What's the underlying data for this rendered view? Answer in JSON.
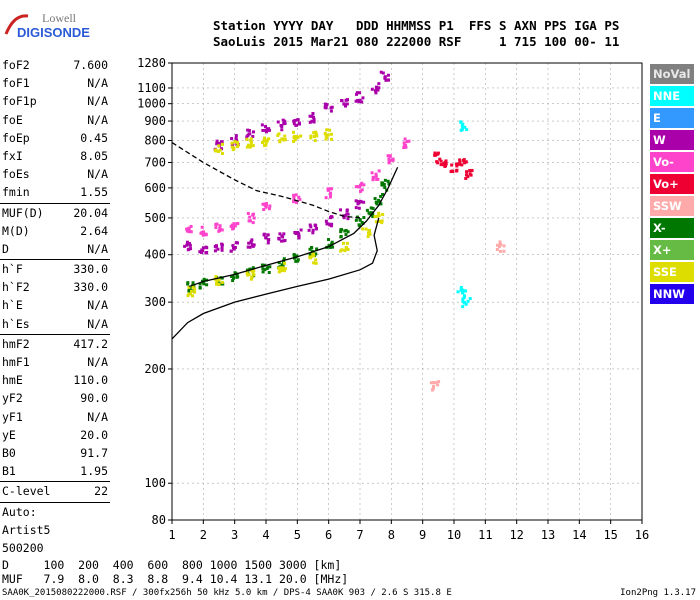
{
  "logo": {
    "line1": "Lowell",
    "line2": "DIGISONDE"
  },
  "header": {
    "row1": "Station YYYY DAY   DDD HHMMSS P1  FFS S AXN PPS IGA PS",
    "row2": "SaoLuis 2015 Mar21 080 222000 RSF     1 715 100 00- 11"
  },
  "params": [
    {
      "name": "foF2",
      "value": "7.600"
    },
    {
      "name": "foF1",
      "value": "N/A"
    },
    {
      "name": "foF1p",
      "value": "N/A"
    },
    {
      "name": "foE",
      "value": "N/A"
    },
    {
      "name": "foEp",
      "value": "0.45"
    },
    {
      "name": "fxI",
      "value": "8.05"
    },
    {
      "name": "foEs",
      "value": "N/A"
    },
    {
      "name": "fmin",
      "value": "1.55",
      "sep": true
    },
    {
      "name": "MUF(D)",
      "value": "20.04"
    },
    {
      "name": "M(D)",
      "value": "2.64"
    },
    {
      "name": "D",
      "value": "N/A",
      "sep": true
    },
    {
      "name": "h`F",
      "value": "330.0"
    },
    {
      "name": "h`F2",
      "value": "330.0"
    },
    {
      "name": "h`E",
      "value": "N/A"
    },
    {
      "name": "h`Es",
      "value": "N/A",
      "sep": true
    },
    {
      "name": "hmF2",
      "value": "417.2"
    },
    {
      "name": "hmF1",
      "value": "N/A"
    },
    {
      "name": "hmE",
      "value": "110.0"
    },
    {
      "name": "yF2",
      "value": "90.0"
    },
    {
      "name": "yF1",
      "value": "N/A"
    },
    {
      "name": "yE",
      "value": "20.0"
    },
    {
      "name": "B0",
      "value": "91.7"
    },
    {
      "name": "B1",
      "value": "1.95",
      "sep": true
    },
    {
      "name": "C-level",
      "value": "22",
      "sep": true
    },
    {
      "name": "Auto:",
      "value": ""
    },
    {
      "name": "Artist5",
      "value": ""
    },
    {
      "name": "500200",
      "value": ""
    }
  ],
  "legend": [
    {
      "label": "NoVal",
      "bg": "#808080",
      "fg": "#e8e8e8"
    },
    {
      "label": "NNE",
      "bg": "#00ffff",
      "fg": "#ffffff"
    },
    {
      "label": "E",
      "bg": "#3399ff",
      "fg": "#ffffff"
    },
    {
      "label": "W",
      "bg": "#aa00aa",
      "fg": "#ffffff"
    },
    {
      "label": "Vo-",
      "bg": "#ff44cc",
      "fg": "#ffffff"
    },
    {
      "label": "Vo+",
      "bg": "#ee0033",
      "fg": "#ffffff"
    },
    {
      "label": "SSW",
      "bg": "#ffaaaa",
      "fg": "#ffffff"
    },
    {
      "label": "X-",
      "bg": "#007700",
      "fg": "#ffffff"
    },
    {
      "label": "X+",
      "bg": "#66bb44",
      "fg": "#ffffff"
    },
    {
      "label": "SSE",
      "bg": "#dddd00",
      "fg": "#ffffff"
    },
    {
      "label": "NNW",
      "bg": "#2200ee",
      "fg": "#ffffff"
    }
  ],
  "footer": {
    "d_row": "D     100  200  400  600  800 1000 1500 3000 [km]",
    "muf_row": "MUF   7.9  8.0  8.3  8.8  9.4 10.4 13.1 20.0 [MHz]",
    "source": "SAA0K_2015080222000.RSF / 300fx256h 50 kHz 5.0 km / DPS-4 SAA0K 903 / 2.6 S 315.8 E",
    "version": "Ion2Png 1.3.17"
  },
  "chart_data": {
    "type": "scatter",
    "title": "",
    "xlabel": "",
    "ylabel": "",
    "xlim": [
      1,
      16
    ],
    "ylim": [
      80,
      1280
    ],
    "y_scale": "log",
    "x_ticks": [
      1,
      2,
      3,
      4,
      5,
      6,
      7,
      8,
      9,
      10,
      11,
      12,
      13,
      14,
      15,
      16
    ],
    "y_ticks": [
      80,
      100,
      200,
      300,
      400,
      500,
      600,
      700,
      800,
      900,
      1000,
      1100,
      1280
    ],
    "grid": "dashed",
    "curves": [
      {
        "name": "foF2 true-height profile",
        "style": "solid",
        "x": [
          1.0,
          1.5,
          2.0,
          3.0,
          4.0,
          5.0,
          6.0,
          7.0,
          7.4,
          7.55,
          7.45,
          7.6
        ],
        "y": [
          240,
          265,
          280,
          300,
          315,
          330,
          345,
          365,
          380,
          410,
          450,
          500
        ]
      },
      {
        "name": "trace model",
        "style": "solid",
        "x": [
          1.55,
          2.0,
          3.0,
          4.0,
          5.0,
          6.0,
          6.8,
          7.2,
          7.6,
          7.9,
          8.2
        ],
        "y": [
          330,
          340,
          355,
          375,
          395,
          420,
          455,
          490,
          540,
          600,
          680
        ]
      },
      {
        "name": "profile upper",
        "style": "dashed",
        "x": [
          1.0,
          2.0,
          3.0,
          3.7,
          4.5,
          5.5,
          6.0,
          6.5,
          7.0
        ],
        "y": [
          790,
          700,
          630,
          590,
          570,
          540,
          520,
          505,
          500
        ]
      }
    ],
    "traces": [
      {
        "name": "X- O-trace",
        "color": "#007700",
        "x": [
          1.6,
          2.0,
          2.5,
          3.0,
          3.5,
          4.0,
          4.5,
          5.0,
          5.5,
          6.0,
          6.5,
          7.0,
          7.3,
          7.6,
          7.8
        ],
        "y": [
          330,
          335,
          345,
          350,
          360,
          370,
          380,
          395,
          410,
          430,
          455,
          490,
          520,
          560,
          610
        ]
      },
      {
        "name": "SSE band",
        "color": "#dddd00",
        "x": [
          1.6,
          2.5,
          3.5,
          4.5,
          5.5,
          6.5,
          7.2,
          7.6
        ],
        "y": [
          320,
          340,
          355,
          370,
          390,
          420,
          455,
          500
        ]
      },
      {
        "name": "W lower F",
        "color": "#aa00aa",
        "x": [
          1.5,
          2.0,
          2.5,
          3.0,
          3.5,
          4.0,
          4.5,
          5.0,
          5.5,
          6.0,
          6.5,
          7.0
        ],
        "y": [
          420,
          410,
          415,
          420,
          430,
          440,
          445,
          455,
          470,
          490,
          510,
          540
        ]
      },
      {
        "name": "Vo- upper F",
        "color": "#ff44cc",
        "x": [
          1.5,
          2.0,
          2.5,
          3.0,
          3.5,
          4.0,
          5.0,
          6.0,
          7.0,
          7.5,
          8.0,
          8.5
        ],
        "y": [
          470,
          460,
          470,
          480,
          500,
          530,
          560,
          580,
          600,
          650,
          720,
          790
        ]
      },
      {
        "name": "multihop",
        "color": "#aa00aa",
        "x": [
          2.5,
          3.0,
          3.5,
          4.0,
          4.5,
          5.0,
          5.5,
          6.0,
          6.5,
          7.0,
          7.5,
          7.8
        ],
        "y": [
          780,
          800,
          830,
          860,
          880,
          900,
          920,
          980,
          1000,
          1040,
          1100,
          1180
        ]
      },
      {
        "name": "multihop SSE",
        "color": "#dddd00",
        "x": [
          2.5,
          3.0,
          3.5,
          4.0,
          4.5,
          5.0,
          5.5,
          6.0
        ],
        "y": [
          760,
          780,
          790,
          800,
          810,
          820,
          820,
          830
        ]
      },
      {
        "name": "Vo+ scatter",
        "color": "#ee0033",
        "x": [
          9.5,
          9.7,
          10.0,
          10.3,
          10.5
        ],
        "y": [
          720,
          690,
          680,
          700,
          650
        ]
      },
      {
        "name": "NNE scatter",
        "color": "#00ffff",
        "x": [
          10.3,
          10.4,
          10.25
        ],
        "y": [
          870,
          300,
          320
        ]
      },
      {
        "name": "SSW scatter",
        "color": "#ffaaaa",
        "x": [
          9.4,
          11.5
        ],
        "y": [
          180,
          420
        ]
      }
    ]
  }
}
